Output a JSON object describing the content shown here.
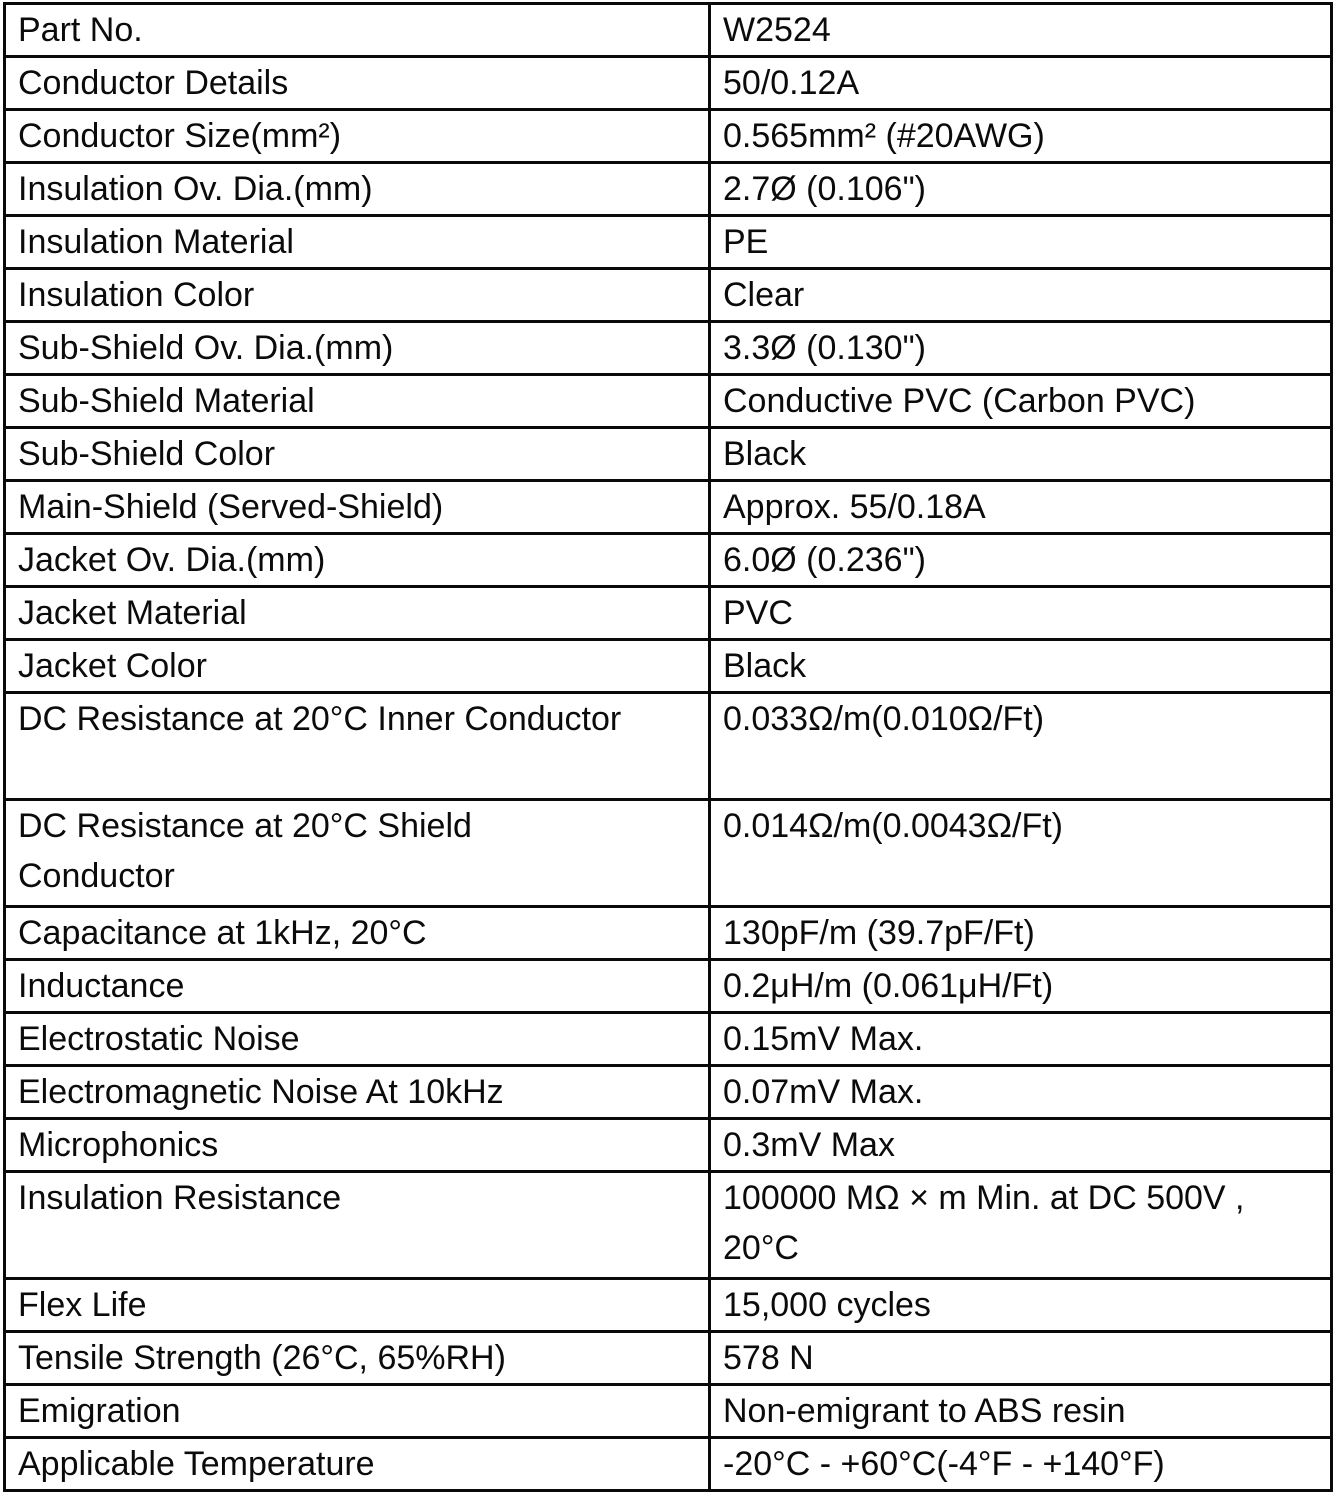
{
  "table": {
    "rows": [
      {
        "label": "Part No.",
        "value": "W2524"
      },
      {
        "label": "Conductor Details",
        "value": "50/0.12A"
      },
      {
        "label": "Conductor Size(mm²)",
        "value": "0.565mm² (#20AWG)"
      },
      {
        "label": "Insulation Ov. Dia.(mm)",
        "value": "2.7Ø (0.106\")"
      },
      {
        "label": "Insulation Material",
        "value": "PE"
      },
      {
        "label": "Insulation Color",
        "value": "Clear"
      },
      {
        "label": "Sub-Shield Ov. Dia.(mm)",
        "value": "3.3Ø (0.130\")"
      },
      {
        "label": "Sub-Shield Material",
        "value": "Conductive PVC (Carbon PVC)"
      },
      {
        "label": "Sub-Shield Color",
        "value": "Black"
      },
      {
        "label": "Main-Shield (Served-Shield)",
        "value": "Approx. 55/0.18A"
      },
      {
        "label": "Jacket Ov. Dia.(mm)",
        "value": "6.0Ø (0.236\")"
      },
      {
        "label": "Jacket Material",
        "value": "PVC"
      },
      {
        "label": "Jacket Color",
        "value": "Black"
      },
      {
        "label": "DC Resistance at 20°C Inner Conductor",
        "value": "0.033Ω/m(0.010Ω/Ft)"
      },
      {
        "label": "DC Resistance at 20°C Shield\nConductor",
        "value": "0.014Ω/m(0.0043Ω/Ft)"
      },
      {
        "label": "Capacitance at 1kHz, 20°C",
        "value": "130pF/m (39.7pF/Ft)"
      },
      {
        "label": "Inductance",
        "value": "0.2μH/m (0.061μH/Ft)"
      },
      {
        "label": "Electrostatic Noise",
        "value": "0.15mV Max."
      },
      {
        "label": "Electromagnetic Noise At 10kHz",
        "value": "0.07mV Max."
      },
      {
        "label": "Microphonics",
        "value": "0.3mV Max"
      },
      {
        "label": "Insulation Resistance",
        "value": "100000 MΩ × m Min. at DC 500V ,\n20°C"
      },
      {
        "label": "Flex Life",
        "value": "15,000 cycles"
      },
      {
        "label": "Tensile Strength (26°C, 65%RH)",
        "value": "578 N"
      },
      {
        "label": "Emigration",
        "value": "Non-emigrant to ABS resin"
      },
      {
        "label": "Applicable Temperature",
        "value": "-20°C - +60°C(-4°F - +140°F)"
      }
    ],
    "colors": {
      "border": "#0a0a0a",
      "text": "#0b0b0b",
      "background": "#ffffff"
    }
  }
}
